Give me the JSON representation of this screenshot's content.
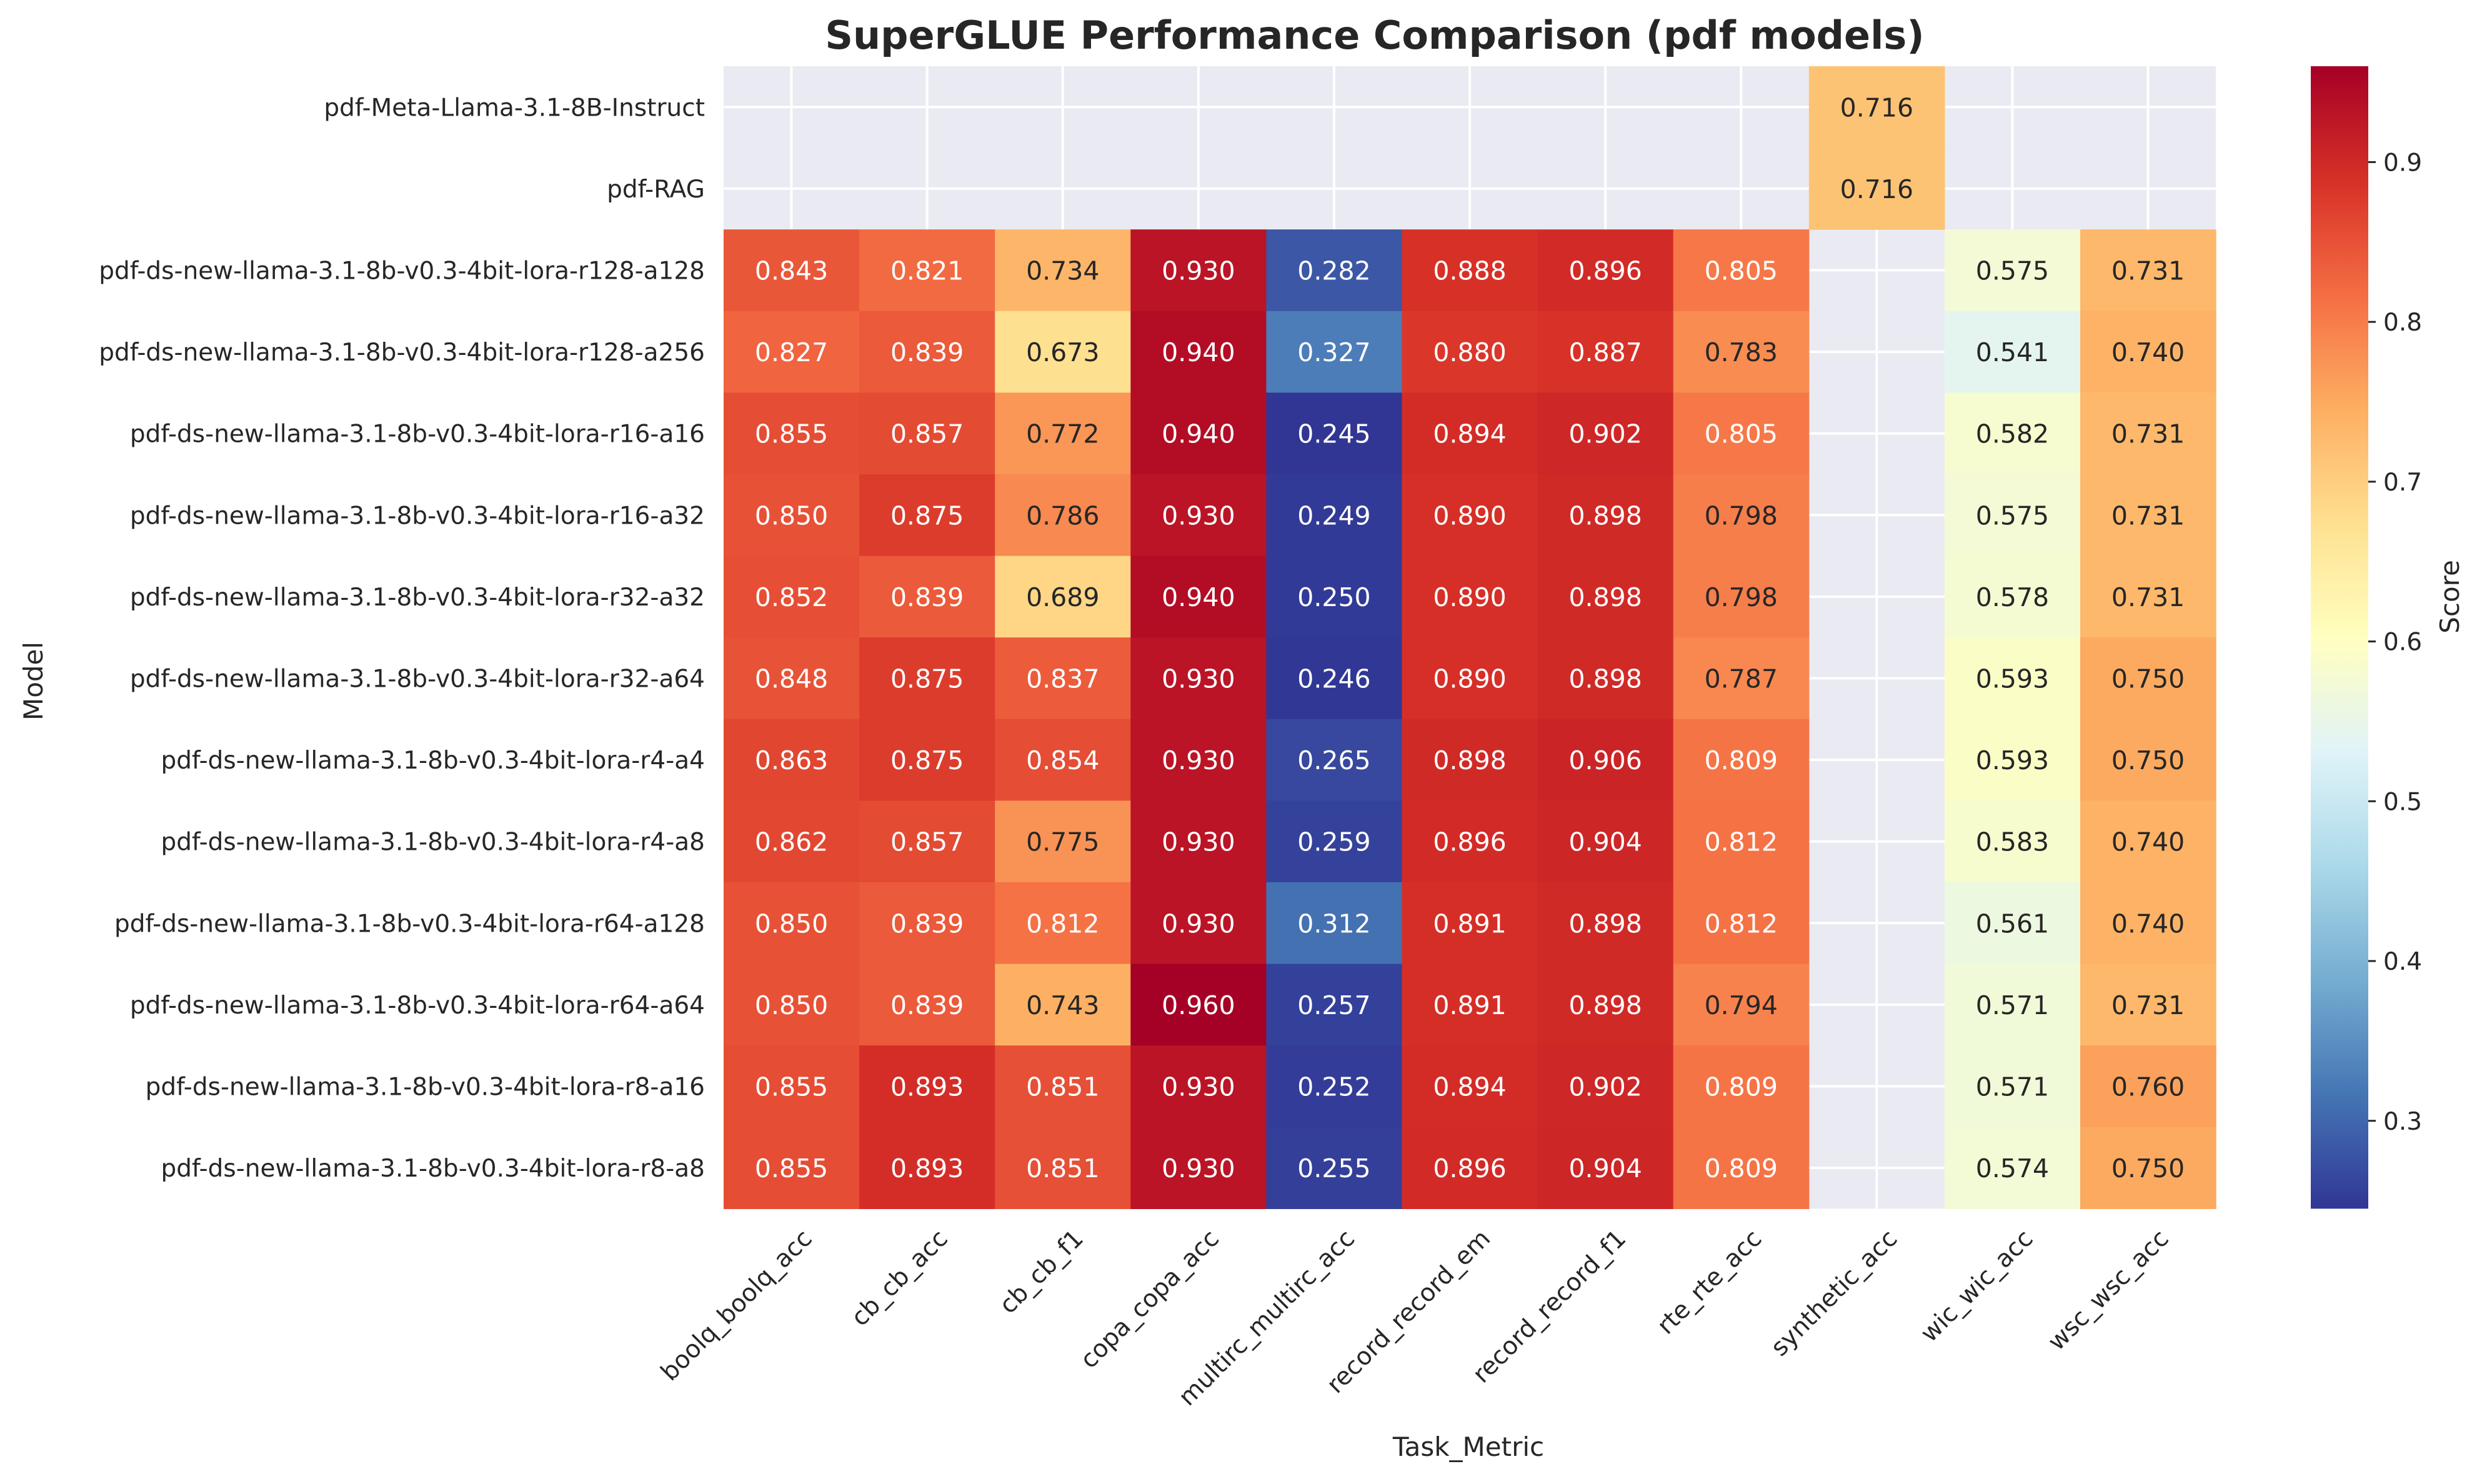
{
  "chart_data": {
    "type": "heatmap",
    "title": "SuperGLUE Performance Comparison (pdf models)",
    "xlabel": "Task_Metric",
    "ylabel": "Model",
    "colorbar_label": "Score",
    "colormap": "RdYlBu_r",
    "color_range": [
      0.245,
      0.96
    ],
    "colorbar_ticks": [
      "0.3",
      "0.4",
      "0.5",
      "0.6",
      "0.7",
      "0.8",
      "0.9"
    ],
    "missing_color": "#eaeaf2",
    "columns": [
      "boolq_boolq_acc",
      "cb_cb_acc",
      "cb_cb_f1",
      "copa_copa_acc",
      "multirc_multirc_acc",
      "record_record_em",
      "record_record_f1",
      "rte_rte_acc",
      "synthetic_acc",
      "wic_wic_acc",
      "wsc_wsc_acc"
    ],
    "rows": [
      "pdf-Meta-Llama-3.1-8B-Instruct",
      "pdf-RAG",
      "pdf-ds-new-llama-3.1-8b-v0.3-4bit-lora-r128-a128",
      "pdf-ds-new-llama-3.1-8b-v0.3-4bit-lora-r128-a256",
      "pdf-ds-new-llama-3.1-8b-v0.3-4bit-lora-r16-a16",
      "pdf-ds-new-llama-3.1-8b-v0.3-4bit-lora-r16-a32",
      "pdf-ds-new-llama-3.1-8b-v0.3-4bit-lora-r32-a32",
      "pdf-ds-new-llama-3.1-8b-v0.3-4bit-lora-r32-a64",
      "pdf-ds-new-llama-3.1-8b-v0.3-4bit-lora-r4-a4",
      "pdf-ds-new-llama-3.1-8b-v0.3-4bit-lora-r4-a8",
      "pdf-ds-new-llama-3.1-8b-v0.3-4bit-lora-r64-a128",
      "pdf-ds-new-llama-3.1-8b-v0.3-4bit-lora-r64-a64",
      "pdf-ds-new-llama-3.1-8b-v0.3-4bit-lora-r8-a16",
      "pdf-ds-new-llama-3.1-8b-v0.3-4bit-lora-r8-a8"
    ],
    "values": [
      [
        null,
        null,
        null,
        null,
        null,
        null,
        null,
        null,
        "0.716",
        null,
        null
      ],
      [
        null,
        null,
        null,
        null,
        null,
        null,
        null,
        null,
        "0.716",
        null,
        null
      ],
      [
        "0.843",
        "0.821",
        "0.734",
        "0.930",
        "0.282",
        "0.888",
        "0.896",
        "0.805",
        null,
        "0.575",
        "0.731"
      ],
      [
        "0.827",
        "0.839",
        "0.673",
        "0.940",
        "0.327",
        "0.880",
        "0.887",
        "0.783",
        null,
        "0.541",
        "0.740"
      ],
      [
        "0.855",
        "0.857",
        "0.772",
        "0.940",
        "0.245",
        "0.894",
        "0.902",
        "0.805",
        null,
        "0.582",
        "0.731"
      ],
      [
        "0.850",
        "0.875",
        "0.786",
        "0.930",
        "0.249",
        "0.890",
        "0.898",
        "0.798",
        null,
        "0.575",
        "0.731"
      ],
      [
        "0.852",
        "0.839",
        "0.689",
        "0.940",
        "0.250",
        "0.890",
        "0.898",
        "0.798",
        null,
        "0.578",
        "0.731"
      ],
      [
        "0.848",
        "0.875",
        "0.837",
        "0.930",
        "0.246",
        "0.890",
        "0.898",
        "0.787",
        null,
        "0.593",
        "0.750"
      ],
      [
        "0.863",
        "0.875",
        "0.854",
        "0.930",
        "0.265",
        "0.898",
        "0.906",
        "0.809",
        null,
        "0.593",
        "0.750"
      ],
      [
        "0.862",
        "0.857",
        "0.775",
        "0.930",
        "0.259",
        "0.896",
        "0.904",
        "0.812",
        null,
        "0.583",
        "0.740"
      ],
      [
        "0.850",
        "0.839",
        "0.812",
        "0.930",
        "0.312",
        "0.891",
        "0.898",
        "0.812",
        null,
        "0.561",
        "0.740"
      ],
      [
        "0.850",
        "0.839",
        "0.743",
        "0.960",
        "0.257",
        "0.891",
        "0.898",
        "0.794",
        null,
        "0.571",
        "0.731"
      ],
      [
        "0.855",
        "0.893",
        "0.851",
        "0.930",
        "0.252",
        "0.894",
        "0.902",
        "0.809",
        null,
        "0.571",
        "0.760"
      ],
      [
        "0.855",
        "0.893",
        "0.851",
        "0.930",
        "0.255",
        "0.896",
        "0.904",
        "0.809",
        null,
        "0.574",
        "0.750"
      ]
    ]
  }
}
